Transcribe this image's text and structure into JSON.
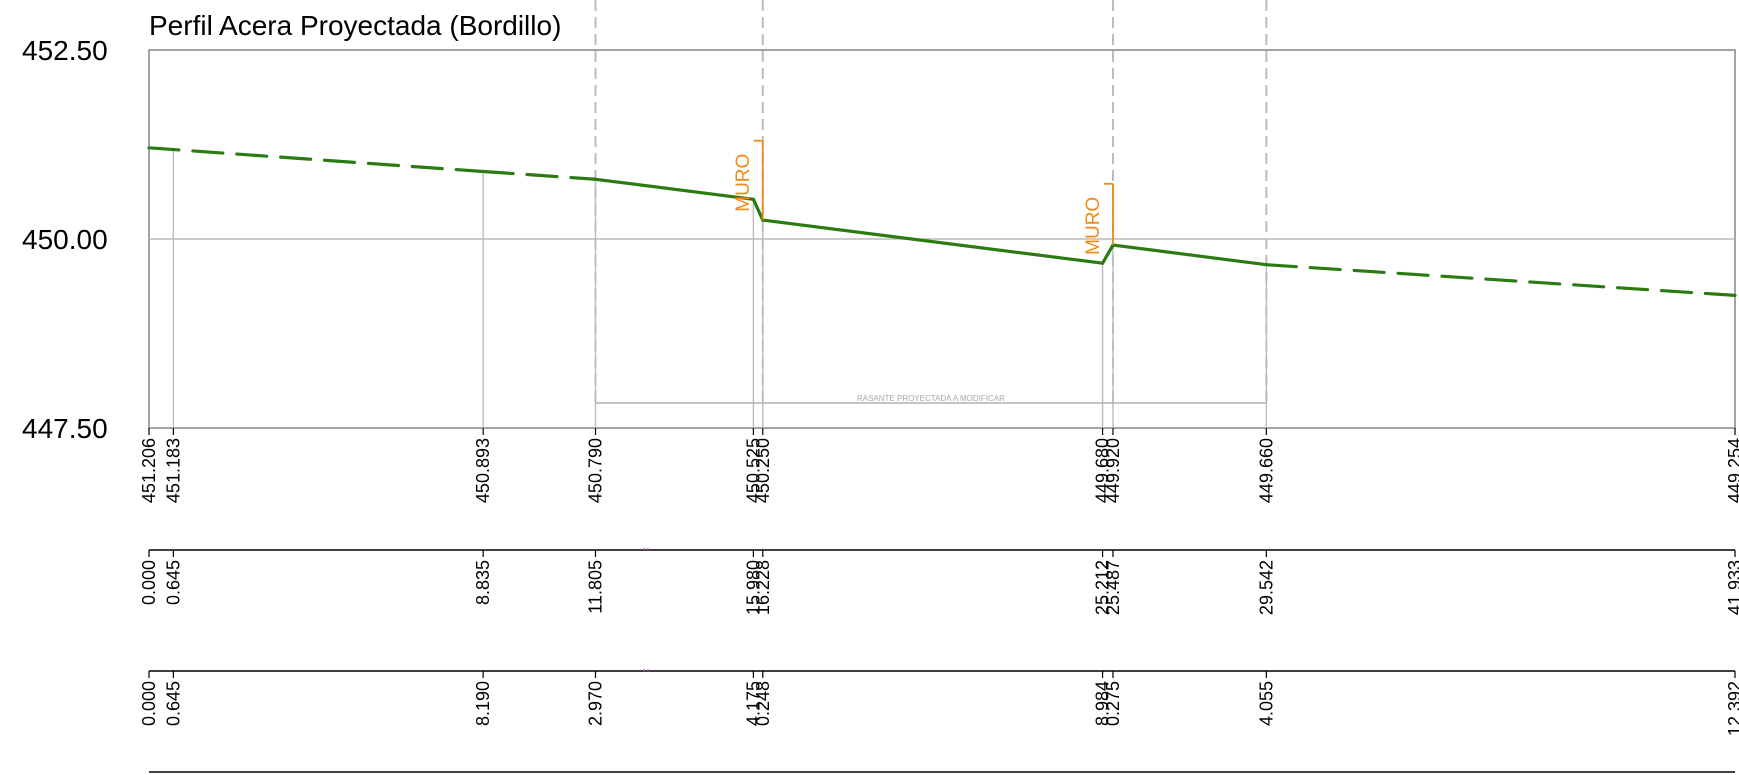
{
  "title": "Perfil Acera Proyectada (Bordillo)",
  "y_axis": {
    "labels": [
      "452.50",
      "450.00",
      "447.50"
    ],
    "values": [
      452.5,
      450.0,
      447.5
    ]
  },
  "note": "RASANTE PROYECTADA A MODIFICAR",
  "wall_label": "MURO",
  "colors": {
    "profile": "#2b7a12",
    "wall": "#f28a14",
    "grid": "#bcbcbc",
    "frame": "#8c8c8c",
    "marker": "#d96ad9"
  },
  "stations": [
    {
      "pk": 0.0,
      "elev": 451.206,
      "elev_label": "451.206",
      "pk_label": "0.000",
      "partial_label": "0.000"
    },
    {
      "pk": 0.645,
      "elev": 451.183,
      "elev_label": "451.183",
      "pk_label": "0.645",
      "partial_label": "0.645"
    },
    {
      "pk": 8.835,
      "elev": 450.893,
      "elev_label": "450.893",
      "pk_label": "8.835",
      "partial_label": "8.190"
    },
    {
      "pk": 11.805,
      "elev": 450.79,
      "elev_label": "450.790",
      "pk_label": "11.805",
      "partial_label": "2.970"
    },
    {
      "pk": 15.98,
      "elev": 450.525,
      "elev_label": "450.525",
      "pk_label": "15.980",
      "partial_label": "4.175"
    },
    {
      "pk": 16.228,
      "elev": 450.25,
      "elev_label": "450.250",
      "pk_label": "16.228",
      "partial_label": "0.248"
    },
    {
      "pk": 25.212,
      "elev": 449.68,
      "elev_label": "449.680",
      "pk_label": "25.212",
      "partial_label": "8.984"
    },
    {
      "pk": 25.487,
      "elev": 449.92,
      "elev_label": "449.920",
      "pk_label": "25.487",
      "partial_label": "0.275"
    },
    {
      "pk": 29.542,
      "elev": 449.66,
      "elev_label": "449.660",
      "pk_label": "29.542",
      "partial_label": "4.055"
    },
    {
      "pk": 41.933,
      "elev": 449.254,
      "elev_label": "449.254",
      "pk_label": "41.933",
      "partial_label": "12.392"
    }
  ],
  "profile_segments": [
    {
      "from": 0,
      "to": 2,
      "style": "dashed"
    },
    {
      "from": 2,
      "to": 3,
      "style": "dashed"
    },
    {
      "from": 3,
      "to": 4,
      "style": "solid"
    },
    {
      "from": 4,
      "to": 5,
      "style": "solid"
    },
    {
      "from": 5,
      "to": 6,
      "style": "solid"
    },
    {
      "from": 6,
      "to": 7,
      "style": "solid"
    },
    {
      "from": 7,
      "to": 8,
      "style": "solid"
    },
    {
      "from": 8,
      "to": 9,
      "style": "dashed"
    }
  ],
  "walls": [
    {
      "pk": 16.228,
      "base_elev": 450.25,
      "top_elev": 451.3
    },
    {
      "pk": 25.487,
      "base_elev": 449.92,
      "top_elev": 450.73
    }
  ],
  "note_range": {
    "from_pk": 11.805,
    "to_pk": 29.542
  },
  "vertical_grid_pks": [
    11.805,
    16.228,
    25.487,
    29.542
  ]
}
